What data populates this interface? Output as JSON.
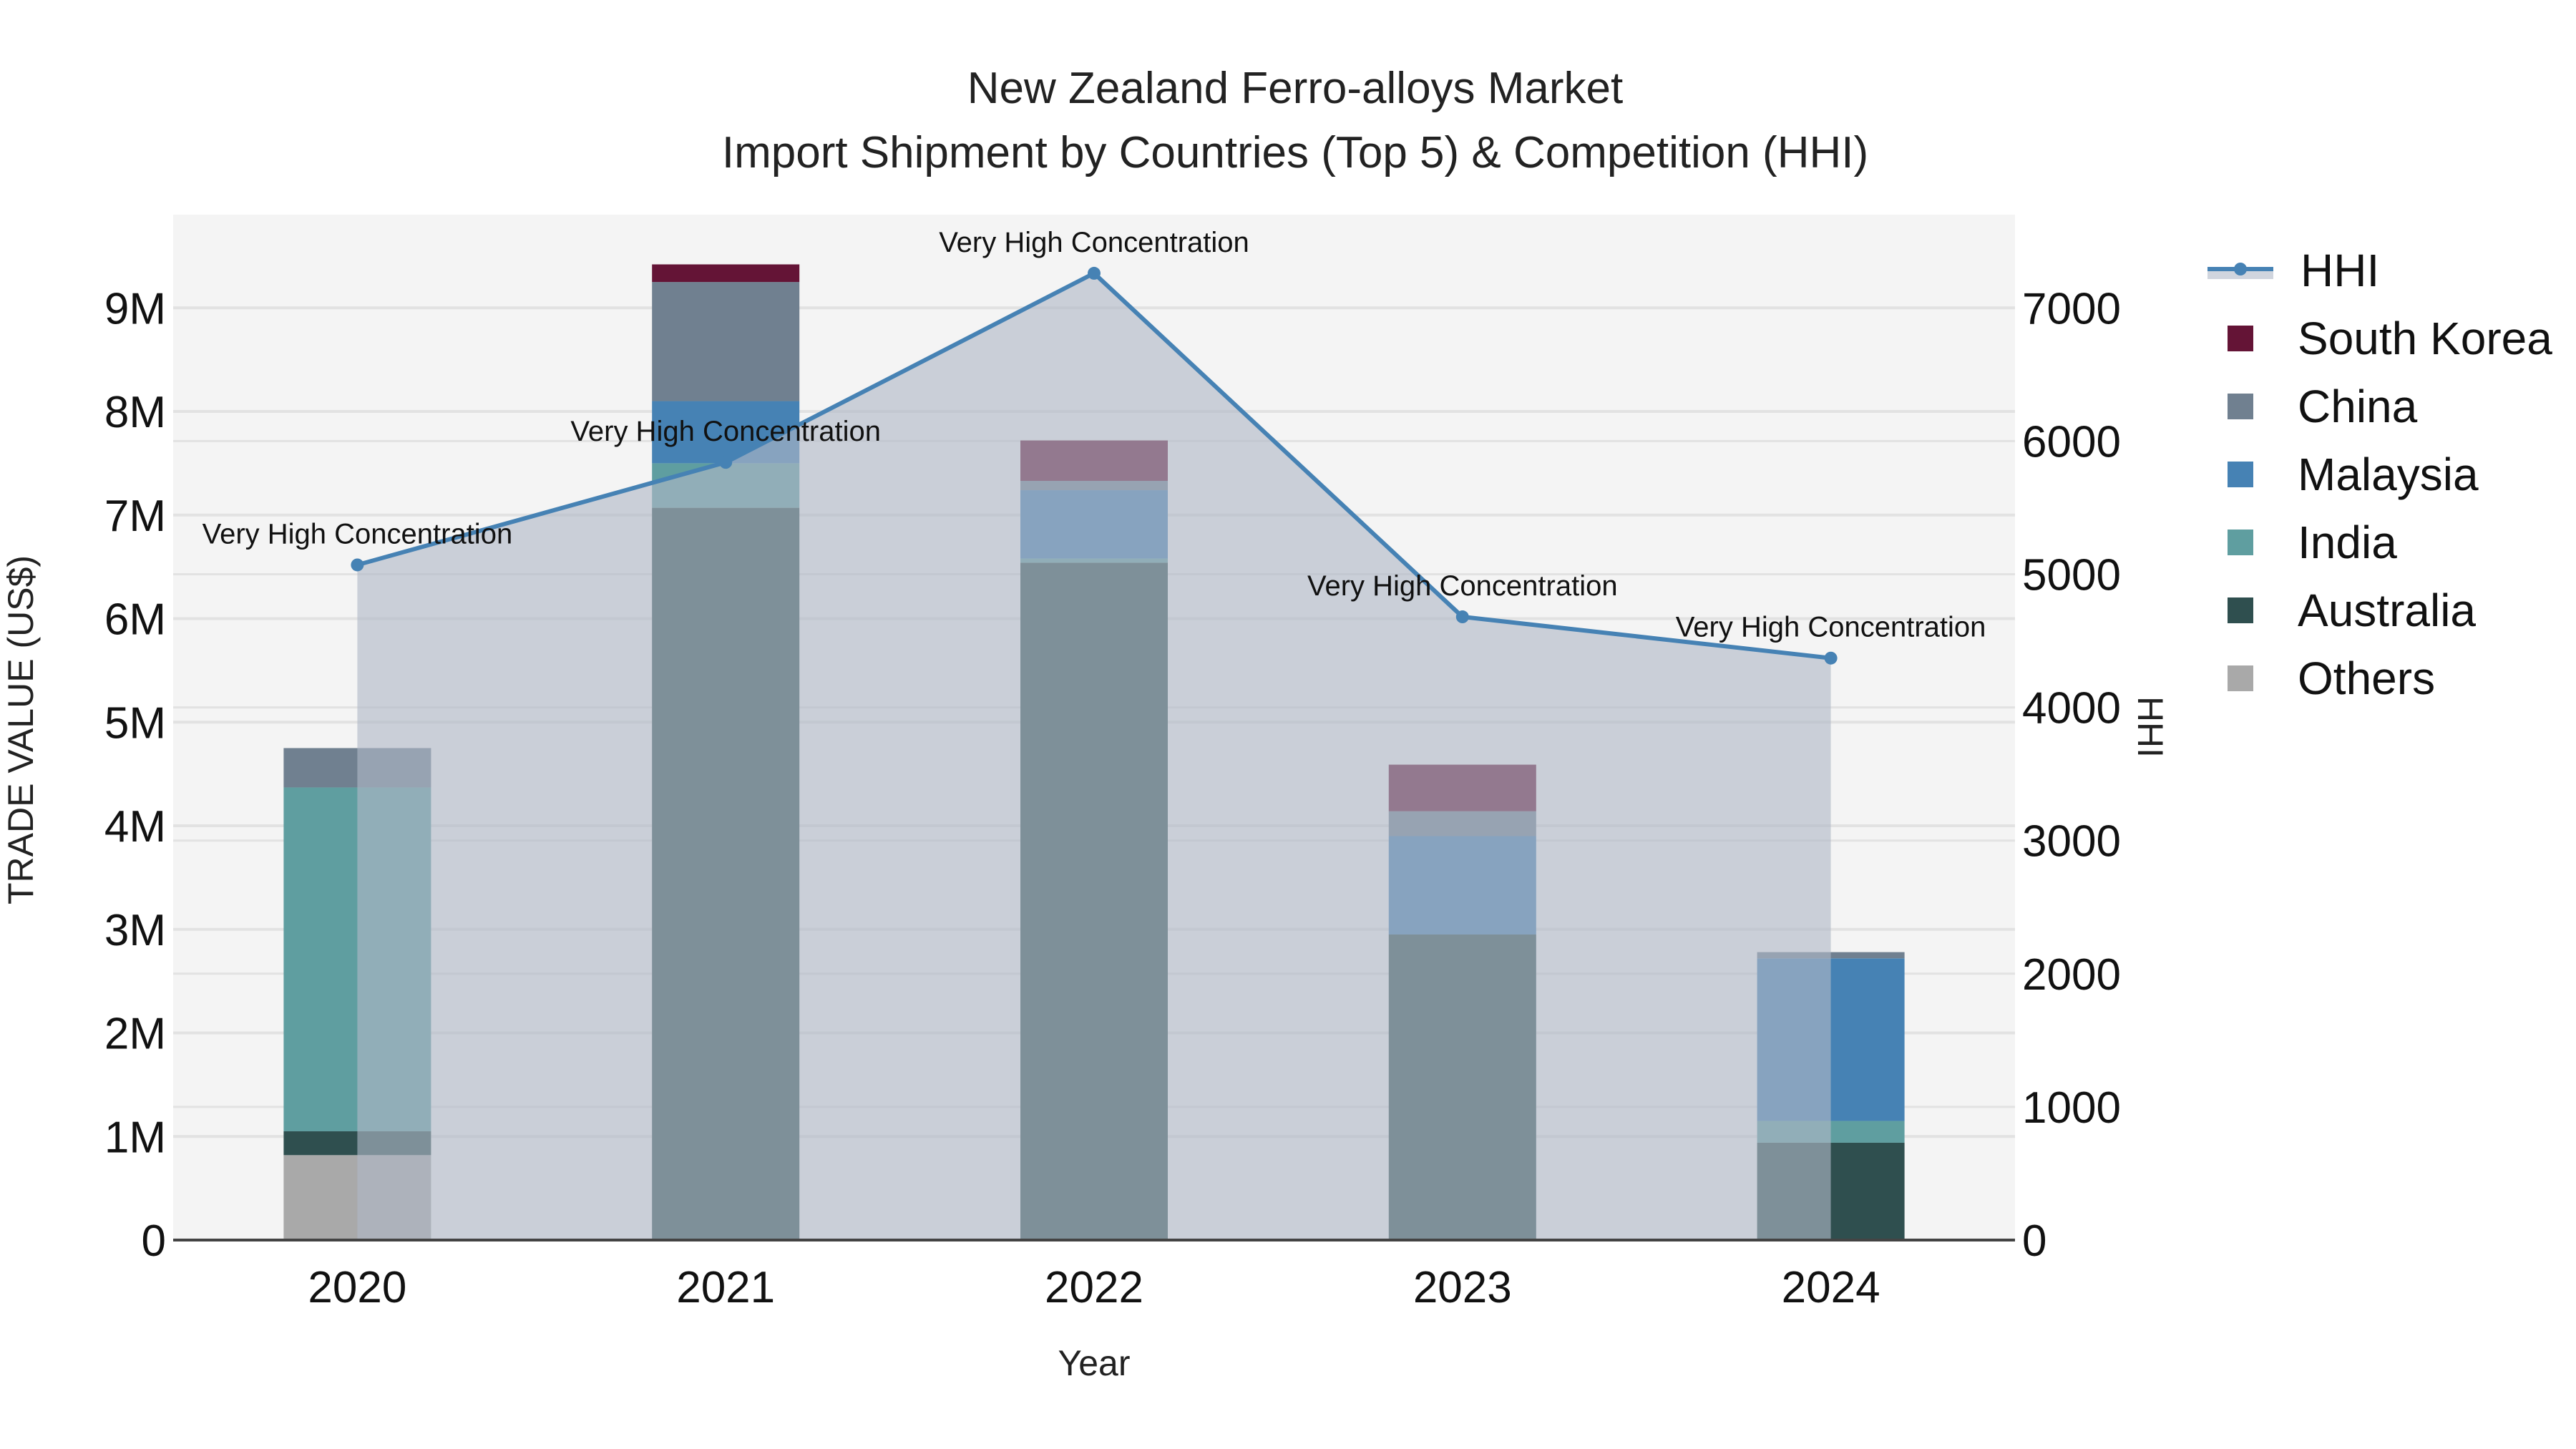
{
  "title": {
    "line1": "New Zealand Ferro-alloys Market",
    "line2": "Import Shipment by Countries (Top 5) & Competition (HHI)"
  },
  "axes": {
    "x_label": "Year",
    "y_left_label": "TRADE VALUE (US$)",
    "y_right_label": "HHI",
    "y_left_ticks": [
      "0",
      "1M",
      "2M",
      "3M",
      "4M",
      "5M",
      "6M",
      "7M",
      "8M",
      "9M"
    ],
    "y_right_ticks": [
      "0",
      "1000",
      "2000",
      "3000",
      "4000",
      "5000",
      "6000",
      "7000"
    ],
    "x_ticks": [
      "2020",
      "2021",
      "2022",
      "2023",
      "2024"
    ]
  },
  "legend": [
    {
      "label": "HHI",
      "color": "#4682b4",
      "kind": "line"
    },
    {
      "label": "South Korea",
      "color": "#641436",
      "kind": "bar"
    },
    {
      "label": "China",
      "color": "#708090",
      "kind": "bar"
    },
    {
      "label": "Malaysia",
      "color": "#4682b4",
      "kind": "bar"
    },
    {
      "label": "India",
      "color": "#5f9ea0",
      "kind": "bar"
    },
    {
      "label": "Australia",
      "color": "#2f4f4f",
      "kind": "bar"
    },
    {
      "label": "Others",
      "color": "#a9a9a9",
      "kind": "bar"
    }
  ],
  "chart_data": {
    "type": "bar",
    "stacked": true,
    "title": "New Zealand Ferro-alloys Market — Import Shipment by Countries (Top 5) & Competition (HHI)",
    "xlabel": "Year",
    "ylabel": "TRADE VALUE (US$)",
    "y2label": "HHI",
    "categories": [
      "2020",
      "2021",
      "2022",
      "2023",
      "2024"
    ],
    "ylim": [
      0,
      9900000
    ],
    "y2lim": [
      0,
      7700
    ],
    "grid": true,
    "legend_position": "right",
    "series": [
      {
        "name": "Others",
        "color": "#a9a9a9",
        "values": [
          820000,
          0,
          0,
          0,
          0
        ]
      },
      {
        "name": "Australia",
        "color": "#2f4f4f",
        "values": [
          230000,
          7070000,
          6540000,
          2950000,
          940000
        ]
      },
      {
        "name": "India",
        "color": "#5f9ea0",
        "values": [
          3320000,
          430000,
          40000,
          0,
          210000
        ]
      },
      {
        "name": "Malaysia",
        "color": "#4682b4",
        "values": [
          0,
          600000,
          660000,
          950000,
          1570000
        ]
      },
      {
        "name": "China",
        "color": "#708090",
        "values": [
          380000,
          1150000,
          90000,
          240000,
          60000
        ]
      },
      {
        "name": "South Korea",
        "color": "#641436",
        "values": [
          0,
          170000,
          390000,
          450000,
          0
        ]
      }
    ],
    "line_series": {
      "name": "HHI",
      "axis": "right",
      "color": "#4682b4",
      "fill": "tozeroy",
      "values": [
        5070,
        5840,
        7260,
        4680,
        4370
      ],
      "annotations": [
        "Very High Concentration",
        "Very High Concentration",
        "Very High Concentration",
        "Very High Concentration",
        "Very High Concentration"
      ]
    }
  }
}
